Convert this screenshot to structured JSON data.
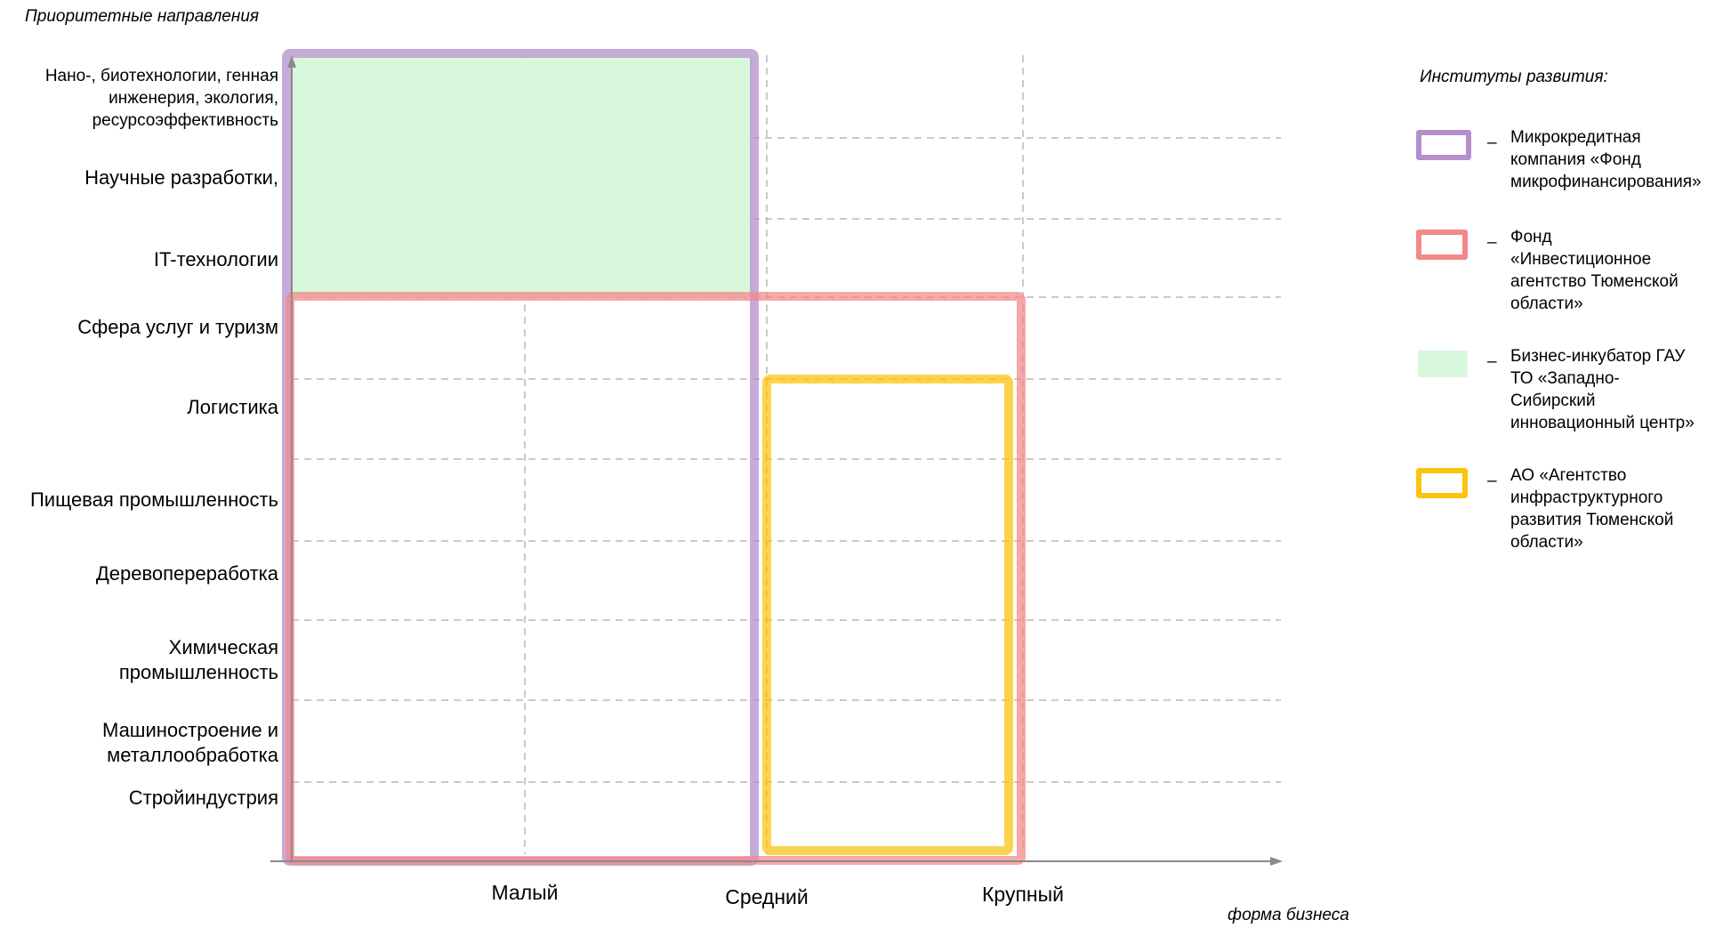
{
  "axis": {
    "y_title": "Приоритетные направления",
    "x_title": "форма бизнеса"
  },
  "y_categories": [
    {
      "label": "Нано-, биотехнологии, генная инженерия, экология, ресурсоэффективность",
      "lines": [
        "Нано-, биотехнологии, генная",
        "инженерия, экология,",
        "ресурсоэффективность"
      ]
    },
    {
      "label": "Научные разработки,",
      "lines": [
        "Научные разработки,"
      ]
    },
    {
      "label": "IT-технологии",
      "lines": [
        "IT-технологии"
      ]
    },
    {
      "label": "Сфера услуг и туризм",
      "lines": [
        "Сфера услуг и туризм"
      ]
    },
    {
      "label": "Логистика",
      "lines": [
        "Логистика"
      ]
    },
    {
      "label": "Пищевая промышленность",
      "lines": [
        "Пищевая промышленность"
      ]
    },
    {
      "label": "Деревопереработка",
      "lines": [
        "Деревопереработка"
      ]
    },
    {
      "label": "Химическая промышленность",
      "lines": [
        "Химическая",
        "промышленность"
      ]
    },
    {
      "label": "Машиностроение и металлообработка",
      "lines": [
        "Машиностроение и",
        "металлообработка"
      ]
    },
    {
      "label": "Стройиндустрия",
      "lines": [
        "Стройиндустрия"
      ]
    }
  ],
  "x_categories": [
    "Малый",
    "Средний",
    "Крупный"
  ],
  "legend": {
    "title": "Институты развития:",
    "dash": "–",
    "items": [
      {
        "key": "microfinance",
        "lines": [
          "Микрокредитная",
          "компания «Фонд",
          "микрофинансирования»"
        ],
        "color": "#b48fcc",
        "style": "outline"
      },
      {
        "key": "investment",
        "lines": [
          "Фонд",
          "«Инвестиционное",
          "агентство Тюменской",
          "области»"
        ],
        "color": "#f3898b",
        "style": "outline"
      },
      {
        "key": "incubator",
        "lines": [
          "Бизнес-инкубатор ГАУ",
          "ТО «Западно-",
          "Сибирский",
          "инновационный центр»"
        ],
        "color": "#d8f8dc",
        "style": "fill"
      },
      {
        "key": "infrastructure",
        "lines": [
          "АО «Агентство",
          "инфраструктурного",
          "развития Тюменской",
          "области»"
        ],
        "color": "#fbc40f",
        "style": "outline"
      }
    ]
  },
  "coverage": [
    {
      "institute": "incubator",
      "x_from": "Малый",
      "x_to": "Средний",
      "y_from": "IT-технологии",
      "y_to": "Нано-, биотехнологии, генная инженерия, экология, ресурсоэффективность"
    },
    {
      "institute": "microfinance",
      "x_from": "Малый",
      "x_to": "Средний",
      "y_from": "Стройиндустрия",
      "y_to": "Нано-, биотехнологии, генная инженерия, экология, ресурсоэффективность"
    },
    {
      "institute": "investment",
      "x_from": "Малый",
      "x_to": "Крупный",
      "y_from": "Стройиндустрия",
      "y_to": "Сфера услуг и туризм"
    },
    {
      "institute": "infrastructure",
      "x_from": "Средний",
      "x_to": "Крупный",
      "y_from": "Стройиндустрия",
      "y_to": "Логистика"
    }
  ]
}
